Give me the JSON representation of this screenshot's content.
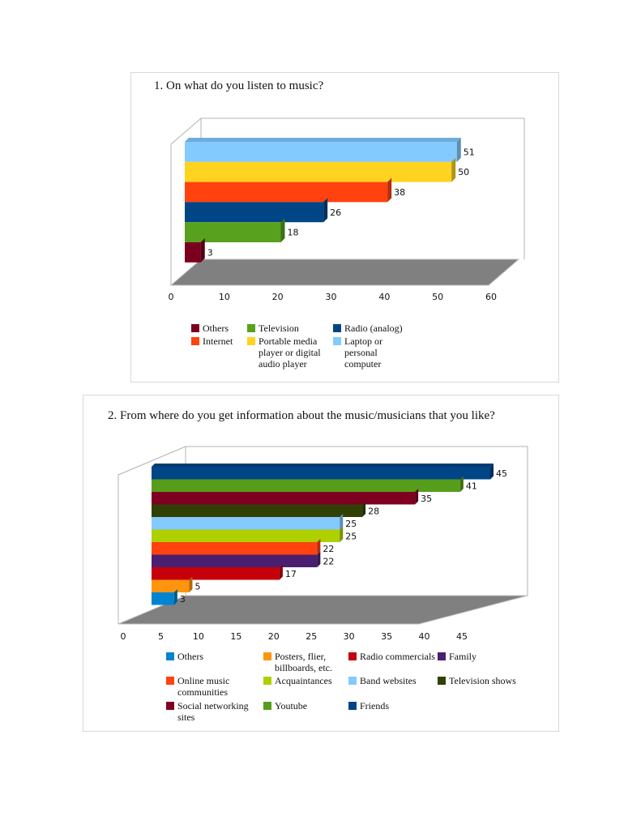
{
  "chart_data": [
    {
      "type": "bar",
      "orientation": "horizontal",
      "style": "3d",
      "title": "1. On what do you listen to music?",
      "categories": [
        "Others",
        "Television",
        "Radio (analog)",
        "Internet",
        "Portable media player or digital audio player",
        "Laptop or personal computer"
      ],
      "values": [
        3,
        18,
        26,
        38,
        50,
        51
      ],
      "colors": [
        "#7b0020",
        "#57a11f",
        "#004586",
        "#ff420e",
        "#ffd320",
        "#83caff"
      ],
      "xlim": [
        0,
        60
      ],
      "xticks": [
        "0",
        "10",
        "20",
        "30",
        "40",
        "50",
        "60"
      ],
      "legend": {
        "placement": "bottom",
        "items": [
          "Others",
          "Television",
          "Radio (analog)",
          "Internet",
          "Portable media player or digital audio player",
          "Laptop or personal computer"
        ],
        "colors": [
          "#7b0020",
          "#57a11f",
          "#004586",
          "#ff420e",
          "#ffd320",
          "#83caff"
        ]
      }
    },
    {
      "type": "bar",
      "orientation": "horizontal",
      "style": "3d",
      "title": "2. From where do you get information about the music/musicians that you like?",
      "categories": [
        "Others",
        "Posters, flier, billboards, etc.",
        "Radio commercials",
        "Family",
        "Online music communities",
        "Acquaintances",
        "Band websites",
        "Television shows",
        "Social networking sites",
        "Youtube",
        "Friends"
      ],
      "values": [
        3,
        5,
        17,
        22,
        22,
        25,
        25,
        28,
        35,
        41,
        45
      ],
      "colors": [
        "#0084d1",
        "#ff950e",
        "#c5000b",
        "#4b1f6f",
        "#ff420e",
        "#aecf00",
        "#83caff",
        "#314004",
        "#7e0021",
        "#579d1c",
        "#004586"
      ],
      "xlim": [
        0,
        45
      ],
      "xticks": [
        "0",
        "5",
        "10",
        "15",
        "20",
        "25",
        "30",
        "35",
        "40",
        "45"
      ],
      "legend": {
        "placement": "bottom",
        "items": [
          "Others",
          "Posters, flier, billboards, etc.",
          "Radio commercials",
          "Family",
          "Online music communities",
          "Acquaintances",
          "Band websites",
          "Television shows",
          "Social networking sites",
          "Youtube",
          "Friends"
        ],
        "colors": [
          "#0084d1",
          "#ff950e",
          "#c5000b",
          "#4b1f6f",
          "#ff420e",
          "#aecf00",
          "#83caff",
          "#314004",
          "#7e0021",
          "#579d1c",
          "#004586"
        ]
      }
    }
  ]
}
